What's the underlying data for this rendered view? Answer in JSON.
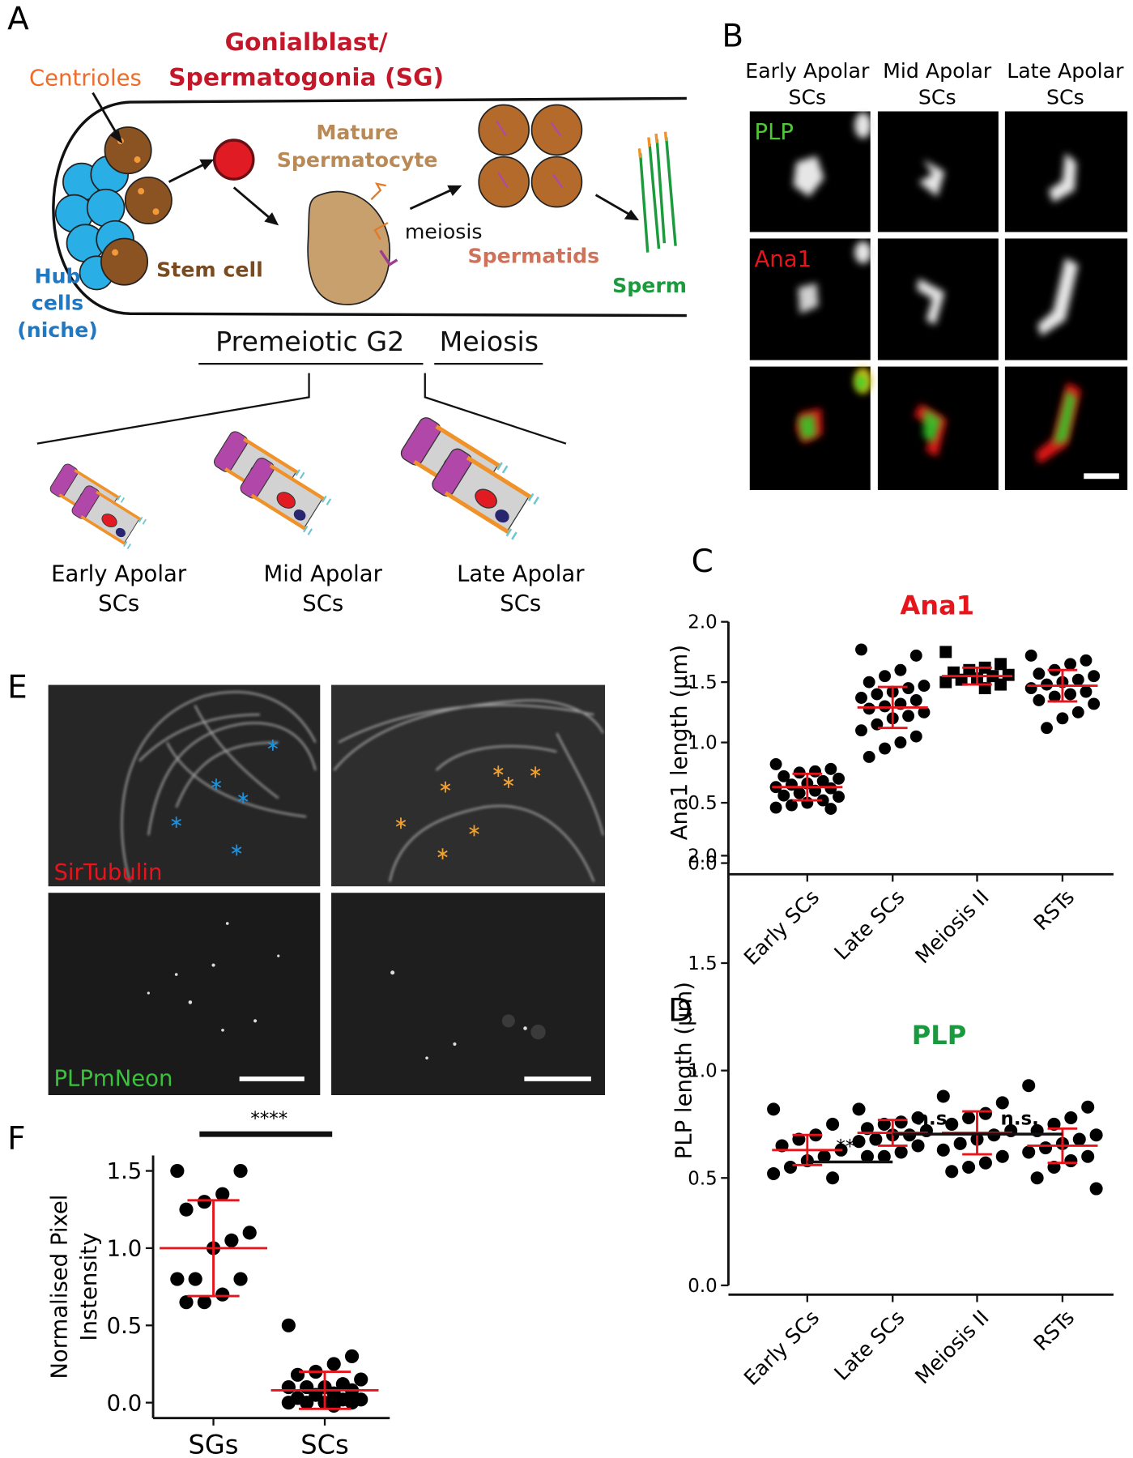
{
  "panels": {
    "A": {
      "label": "A",
      "gonialblast": [
        "Gonialblast/",
        "Spermatogonia (SG)"
      ],
      "centrioles": "Centrioles",
      "spermatocyte": [
        "Mature",
        "Spermatocyte"
      ],
      "meiosis_arrow": "meiosis",
      "spermatids": "Spermatids",
      "sperm": "Sperm",
      "hub": [
        "Hub",
        "cells",
        "(niche)"
      ],
      "stem_cell": "Stem cell",
      "stages": [
        "Premeiotic G2",
        "Meiosis"
      ],
      "diagrams": [
        [
          "Early Apolar",
          "SCs"
        ],
        [
          "Mid Apolar",
          "SCs"
        ],
        [
          "Late Apolar",
          "SCs"
        ]
      ]
    },
    "B": {
      "label": "B",
      "columns": [
        [
          "Early Apolar",
          "SCs"
        ],
        [
          "Mid Apolar",
          "SCs"
        ],
        [
          "Late Apolar",
          "SCs"
        ]
      ],
      "rows": [
        "PLP",
        "Ana1"
      ]
    },
    "E": {
      "label": "E",
      "channels": [
        "SirTubulin",
        "PLPmNeon"
      ]
    }
  },
  "chart_data": [
    {
      "type": "dot",
      "panel": "C",
      "title": "Ana1",
      "title_color": "#e8141b",
      "ylabel": [
        "Ana1 length (μm)"
      ],
      "categories": [
        "Early SCs",
        "Late SCs",
        "Meiosis II",
        "RSTs"
      ],
      "markers": [
        "circle",
        "circle",
        "square",
        "circle"
      ],
      "points": [
        [
          0.82,
          0.78,
          0.76,
          0.75,
          0.72,
          0.7,
          0.68,
          0.66,
          0.65,
          0.63,
          0.62,
          0.6,
          0.58,
          0.56,
          0.55,
          0.52,
          0.5,
          0.48,
          0.46,
          0.45
        ],
        [
          1.77,
          1.72,
          1.6,
          1.55,
          1.5,
          1.47,
          1.45,
          1.42,
          1.4,
          1.37,
          1.35,
          1.32,
          1.3,
          1.28,
          1.25,
          1.22,
          1.2,
          1.15,
          1.1,
          1.05,
          1.0,
          0.95,
          0.88
        ],
        [
          1.75,
          1.65,
          1.62,
          1.6,
          1.58,
          1.56,
          1.55,
          1.53,
          1.52,
          1.5,
          1.48,
          1.45
        ],
        [
          1.72,
          1.68,
          1.65,
          1.6,
          1.57,
          1.55,
          1.52,
          1.5,
          1.48,
          1.45,
          1.42,
          1.4,
          1.38,
          1.35,
          1.32,
          1.25,
          1.2,
          1.12
        ]
      ],
      "means": [
        0.63,
        1.29,
        1.55,
        1.47
      ],
      "sd": [
        0.11,
        0.17,
        0.07,
        0.13
      ],
      "ylim": [
        0,
        2
      ],
      "yticks": [
        {
          "value": 0,
          "label": "0.0"
        },
        {
          "value": 0.5,
          "label": "0.5"
        },
        {
          "value": 1,
          "label": "1.0"
        },
        {
          "value": 1.5,
          "label": "1.5"
        },
        {
          "value": 2,
          "label": "2.0"
        }
      ],
      "grid": false,
      "comparisons": []
    },
    {
      "type": "dot",
      "panel": "D",
      "title": "PLP",
      "title_color": "#1a9a3e",
      "ylabel": [
        "PLP length (μm)"
      ],
      "categories": [
        "Early SCs",
        "Late SCs",
        "Meiosis II",
        "RSTs"
      ],
      "markers": [
        "circle",
        "circle",
        "circle",
        "circle"
      ],
      "points": [
        [
          0.82,
          0.75,
          0.7,
          0.68,
          0.65,
          0.63,
          0.6,
          0.58,
          0.55,
          0.52,
          0.5
        ],
        [
          0.82,
          0.78,
          0.76,
          0.75,
          0.73,
          0.72,
          0.7,
          0.7,
          0.68,
          0.67,
          0.65,
          0.62,
          0.6,
          0.6
        ],
        [
          0.88,
          0.85,
          0.8,
          0.78,
          0.75,
          0.72,
          0.7,
          0.68,
          0.66,
          0.63,
          0.6,
          0.57,
          0.55,
          0.53
        ],
        [
          0.93,
          0.83,
          0.78,
          0.75,
          0.72,
          0.7,
          0.68,
          0.66,
          0.64,
          0.62,
          0.6,
          0.58,
          0.55,
          0.5,
          0.45
        ]
      ],
      "means": [
        0.63,
        0.71,
        0.71,
        0.65
      ],
      "sd": [
        0.07,
        0.06,
        0.1,
        0.08
      ],
      "ylim": [
        0,
        2
      ],
      "yticks": [
        {
          "value": 0,
          "label": "0.0"
        },
        {
          "value": 0.5,
          "label": "0.5"
        },
        {
          "value": 1,
          "label": "1.0"
        },
        {
          "value": 1.5,
          "label": "1.5"
        },
        {
          "value": 2,
          "label": "2.0"
        }
      ],
      "grid": false,
      "comparisons": [
        {
          "label": "***",
          "between": [
            0,
            1
          ]
        },
        {
          "label": "n.s.",
          "between": [
            1,
            2
          ]
        },
        {
          "label": "n.s.",
          "between": [
            2,
            3
          ]
        }
      ]
    },
    {
      "type": "dot",
      "panel": "F",
      "ylabel": [
        "Normalised Pixel",
        "Instensity"
      ],
      "categories": [
        "SGs",
        "SCs"
      ],
      "markers": [
        "circle",
        "circle"
      ],
      "points": [
        [
          1.5,
          1.5,
          1.35,
          1.3,
          1.25,
          1.1,
          1.05,
          1.0,
          0.8,
          0.8,
          0.8,
          0.7,
          0.65,
          0.65
        ],
        [
          0.5,
          0.3,
          0.25,
          0.2,
          0.18,
          0.15,
          0.12,
          0.1,
          0.1,
          0.1,
          0.08,
          0.06,
          0.05,
          0.03,
          0.02,
          0.02,
          0.0,
          0.0,
          0.0,
          0.0,
          -0.02
        ]
      ],
      "means": [
        1.0,
        0.08
      ],
      "sd": [
        0.31,
        0.12
      ],
      "ylim": [
        -0.1,
        1.6
      ],
      "yticks": [
        {
          "value": 0,
          "label": "0.0"
        },
        {
          "value": 0.5,
          "label": "0.5"
        },
        {
          "value": 1,
          "label": "1.0"
        },
        {
          "value": 1.5,
          "label": "1.5"
        }
      ],
      "grid": false,
      "comparisons": [
        {
          "label": "****",
          "between": [
            0,
            1
          ]
        }
      ]
    }
  ]
}
